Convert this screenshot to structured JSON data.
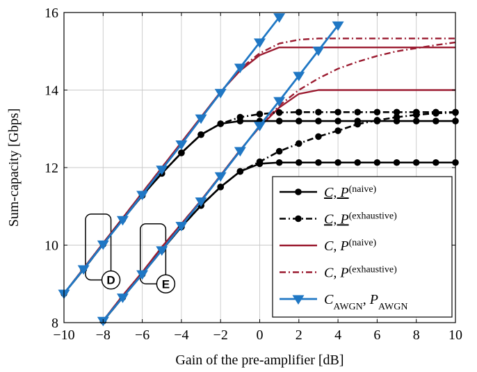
{
  "chart_data": {
    "type": "line",
    "xlabel": "Gain of the pre-amplifier [dB]",
    "ylabel": "Sum-capacity [Gbps]",
    "xlim": [
      -10,
      10
    ],
    "ylim": [
      8,
      16
    ],
    "xticks": [
      -10,
      -8,
      -6,
      -4,
      -2,
      0,
      2,
      4,
      6,
      8,
      10
    ],
    "yticks": [
      8,
      10,
      12,
      14,
      16
    ],
    "xtick_labels": [
      "−10",
      "−8",
      "−6",
      "−4",
      "−2",
      "0",
      "2",
      "4",
      "6",
      "8",
      "10"
    ],
    "ytick_labels": [
      "8",
      "10",
      "12",
      "14",
      "16"
    ],
    "grid": true,
    "legend_position": "bottom-right",
    "series": [
      {
        "key": "black_solid_A",
        "group": 0,
        "style": "black-solid-dot",
        "color": "#000000",
        "x": [
          -10,
          -9,
          -8,
          -7,
          -6,
          -5,
          -4,
          -3,
          -2,
          -1,
          0,
          1,
          2,
          3,
          4,
          5,
          6,
          7,
          8,
          9,
          10
        ],
        "y": [
          8.75,
          9.37,
          10.02,
          10.66,
          11.28,
          11.85,
          12.38,
          12.85,
          13.13,
          13.2,
          13.2,
          13.2,
          13.2,
          13.2,
          13.2,
          13.2,
          13.2,
          13.2,
          13.2,
          13.2,
          13.2
        ]
      },
      {
        "key": "black_solid_B",
        "group": 0,
        "style": "black-solid-dot",
        "color": "#000000",
        "x": [
          -8,
          -7,
          -6,
          -5,
          -4,
          -3,
          -2,
          -1,
          0,
          1,
          2,
          3,
          4,
          5,
          6,
          7,
          8,
          9,
          10
        ],
        "y": [
          8.04,
          8.65,
          9.25,
          9.87,
          10.47,
          11.02,
          11.5,
          11.9,
          12.1,
          12.13,
          12.13,
          12.13,
          12.13,
          12.13,
          12.13,
          12.13,
          12.13,
          12.13,
          12.13
        ]
      },
      {
        "key": "black_dashdot_A",
        "group": 1,
        "style": "black-dashdot-dot",
        "color": "#000000",
        "x": [
          -10,
          -9,
          -8,
          -7,
          -6,
          -5,
          -4,
          -3,
          -2,
          -1,
          0,
          1,
          2,
          3,
          4,
          5,
          6,
          7,
          8,
          9,
          10
        ],
        "y": [
          8.75,
          9.37,
          10.02,
          10.66,
          11.28,
          11.85,
          12.38,
          12.85,
          13.13,
          13.3,
          13.38,
          13.42,
          13.43,
          13.43,
          13.43,
          13.43,
          13.43,
          13.43,
          13.43,
          13.43,
          13.43
        ]
      },
      {
        "key": "black_dashdot_B",
        "group": 1,
        "style": "black-dashdot-dot",
        "color": "#000000",
        "x": [
          -8,
          -7,
          -6,
          -5,
          -4,
          -3,
          -2,
          -1,
          0,
          1,
          2,
          3,
          4,
          5,
          6,
          7,
          8,
          9,
          10
        ],
        "y": [
          8.04,
          8.65,
          9.25,
          9.87,
          10.47,
          11.02,
          11.5,
          11.9,
          12.15,
          12.42,
          12.62,
          12.8,
          12.95,
          13.12,
          13.22,
          13.3,
          13.36,
          13.4,
          13.42
        ]
      },
      {
        "key": "red_solid_A",
        "group": 2,
        "style": "red-solid",
        "color": "#9b1b30",
        "x": [
          -10,
          -9,
          -8,
          -7,
          -6,
          -5,
          -4,
          -3,
          -2,
          -1,
          0,
          1,
          2,
          3,
          4,
          5,
          6,
          7,
          8,
          9,
          10
        ],
        "y": [
          8.75,
          9.4,
          10.05,
          10.7,
          11.35,
          12.0,
          12.65,
          13.3,
          13.95,
          14.5,
          14.9,
          15.1,
          15.1,
          15.1,
          15.1,
          15.1,
          15.1,
          15.1,
          15.1,
          15.1,
          15.1
        ]
      },
      {
        "key": "red_solid_B",
        "group": 2,
        "style": "red-solid",
        "color": "#9b1b30",
        "x": [
          -8,
          -7,
          -6,
          -5,
          -4,
          -3,
          -2,
          -1,
          0,
          1,
          2,
          3,
          4,
          5,
          6,
          7,
          8,
          9,
          10
        ],
        "y": [
          8.05,
          8.7,
          9.3,
          9.95,
          10.55,
          11.15,
          11.8,
          12.45,
          13.05,
          13.55,
          13.9,
          14.0,
          14.0,
          14.0,
          14.0,
          14.0,
          14.0,
          14.0,
          14.0
        ]
      },
      {
        "key": "red_dashdot_A",
        "group": 3,
        "style": "red-dashdot",
        "color": "#9b1b30",
        "x": [
          -10,
          -9,
          -8,
          -7,
          -6,
          -5,
          -4,
          -3,
          -2,
          -1,
          0,
          1,
          2,
          3,
          4,
          5,
          6,
          7,
          8,
          9,
          10
        ],
        "y": [
          8.75,
          9.4,
          10.05,
          10.7,
          11.35,
          12.0,
          12.65,
          13.3,
          13.95,
          14.55,
          14.95,
          15.2,
          15.3,
          15.33,
          15.33,
          15.33,
          15.33,
          15.33,
          15.33,
          15.33,
          15.33
        ]
      },
      {
        "key": "red_dashdot_B",
        "group": 3,
        "style": "red-dashdot",
        "color": "#9b1b30",
        "x": [
          -8,
          -7,
          -6,
          -5,
          -4,
          -3,
          -2,
          -1,
          0,
          1,
          2,
          3,
          4,
          5,
          6,
          7,
          8,
          9,
          10
        ],
        "y": [
          8.05,
          8.7,
          9.3,
          9.95,
          10.55,
          11.15,
          11.8,
          12.45,
          13.05,
          13.6,
          14.0,
          14.3,
          14.55,
          14.73,
          14.88,
          15.0,
          15.08,
          15.16,
          15.23
        ]
      },
      {
        "key": "blue_A",
        "group": 4,
        "style": "blue-solid-triangle",
        "color": "#1f77c4",
        "x": [
          -10,
          -9,
          -8,
          -7,
          -6,
          -5,
          -4,
          -3,
          -2,
          -1,
          0,
          1
        ],
        "y": [
          8.75,
          9.38,
          10.02,
          10.65,
          11.3,
          11.95,
          12.6,
          13.27,
          13.93,
          14.58,
          15.23,
          15.88
        ]
      },
      {
        "key": "blue_B",
        "group": 4,
        "style": "blue-solid-triangle",
        "color": "#1f77c4",
        "x": [
          -8,
          -7,
          -6,
          -5,
          -4,
          -3,
          -2,
          -1,
          0,
          1,
          2,
          3,
          4
        ],
        "y": [
          8.05,
          8.65,
          9.25,
          9.87,
          10.5,
          11.13,
          11.78,
          12.43,
          13.08,
          13.72,
          14.37,
          15.02,
          15.67
        ]
      }
    ],
    "legend": [
      {
        "group": 0,
        "style": "black-solid-dot",
        "base": "C, P",
        "sup": "(naive)",
        "underline": true
      },
      {
        "group": 1,
        "style": "black-dashdot-dot",
        "base": "C, P",
        "sup": "(exhaustive)",
        "underline": true
      },
      {
        "group": 2,
        "style": "red-solid",
        "base": "C, P",
        "sup": "(naive)",
        "underline": false
      },
      {
        "group": 3,
        "style": "red-dashdot",
        "base": "C, P",
        "sup": "(exhaustive)",
        "underline": false
      },
      {
        "group": 4,
        "style": "blue-solid-triangle",
        "base": "C",
        "sub1": "AWGN",
        "base2": "P",
        "sub2": "AWGN"
      }
    ],
    "annotations": [
      {
        "label": "D",
        "box": {
          "x1": -8.9,
          "x2": -7.6,
          "y1": 9.1,
          "y2": 10.8
        }
      },
      {
        "label": "E",
        "box": {
          "x1": -6.1,
          "x2": -4.8,
          "y1": 9.0,
          "y2": 10.55
        }
      }
    ]
  }
}
